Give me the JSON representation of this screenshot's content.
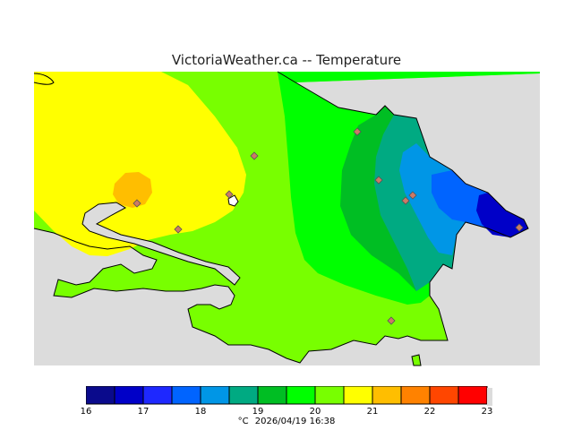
{
  "header": {
    "title": "VictoriaWeather.ca  --  Temperature"
  },
  "colorbar": {
    "ticks": [
      "16",
      "17",
      "18",
      "19",
      "20",
      "21",
      "22",
      "23"
    ],
    "colors": [
      "#0a0a8c",
      "#0000c8",
      "#1e28ff",
      "#0064ff",
      "#0096e6",
      "#00aa82",
      "#00be23",
      "#00ff00",
      "#78ff00",
      "#ffff00",
      "#ffbe00",
      "#ff8200",
      "#ff4600",
      "#ff0000"
    ]
  },
  "footer": {
    "unit": "°C",
    "timestamp": "2026/04/19 16:38"
  },
  "map": {
    "land_color": "#dcdcdc",
    "station_marker": "diamond-station-icon",
    "stations_count_visible": 10
  }
}
